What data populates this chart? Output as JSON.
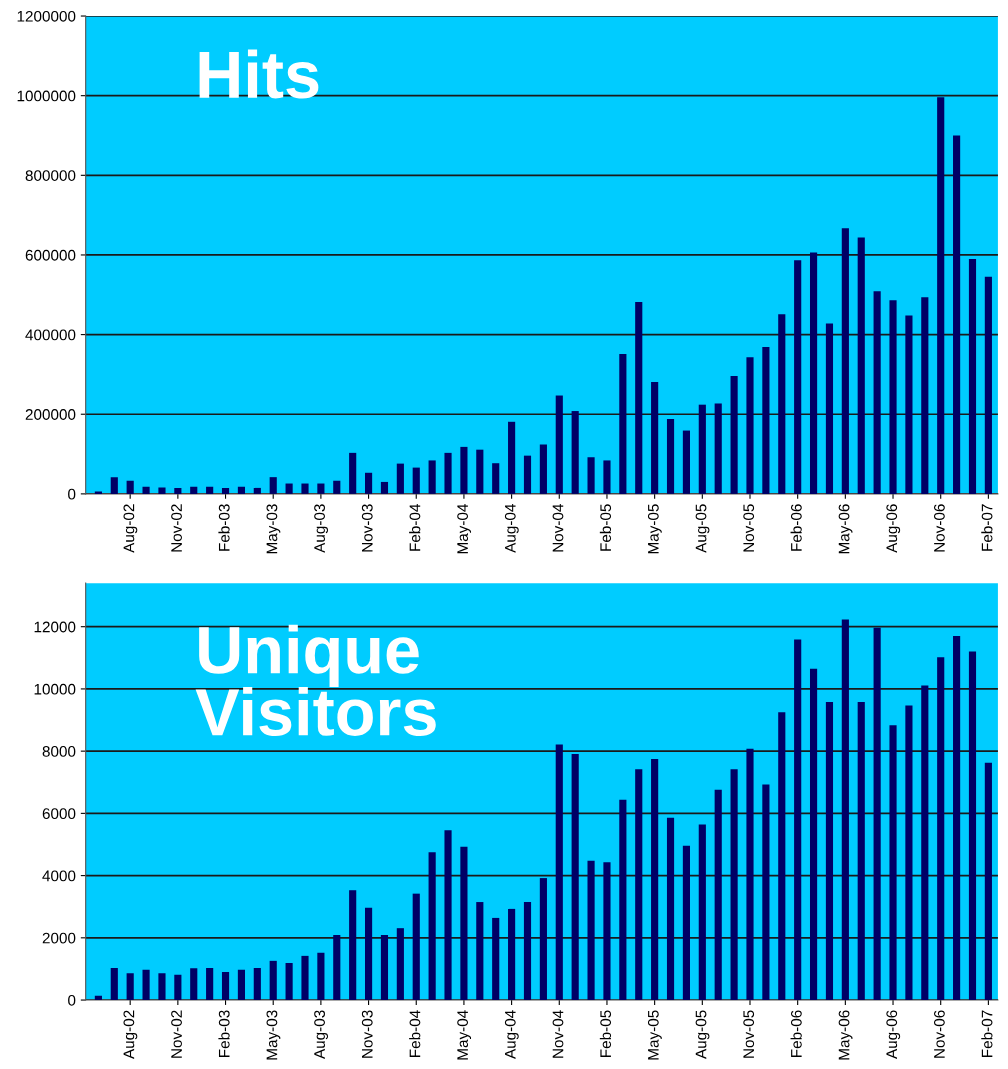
{
  "chart_data": [
    {
      "type": "bar",
      "title": "Hits",
      "color": "#000066",
      "grid": "y",
      "ylim": [
        0,
        1200000
      ],
      "yticks": [
        0,
        200000,
        400000,
        600000,
        800000,
        1000000,
        1200000
      ],
      "categories": [
        null,
        null,
        "Aug-02",
        null,
        null,
        "Nov-02",
        null,
        null,
        "Feb-03",
        null,
        null,
        "May-03",
        null,
        null,
        "Aug-03",
        null,
        null,
        "Nov-03",
        null,
        null,
        "Feb-04",
        null,
        null,
        "May-04",
        null,
        null,
        "Aug-04",
        null,
        null,
        "Nov-04",
        null,
        null,
        "Feb-05",
        null,
        null,
        "May-05",
        null,
        null,
        "Aug-05",
        null,
        null,
        "Nov-05",
        null,
        null,
        "Feb-06",
        null,
        null,
        "May-06",
        null,
        null,
        "Aug-06",
        null,
        null,
        "Nov-06",
        null,
        null,
        "Feb-07"
      ],
      "values": [
        6000,
        42000,
        33000,
        18000,
        16000,
        15000,
        18000,
        18000,
        15000,
        18000,
        15000,
        42000,
        26000,
        26000,
        26000,
        33000,
        103000,
        53000,
        30000,
        76000,
        66000,
        84000,
        103000,
        118000,
        111000,
        77000,
        181000,
        96000,
        124000,
        247000,
        208000,
        92000,
        84000,
        351000,
        482000,
        281000,
        188000,
        159000,
        224000,
        227000,
        296000,
        343000,
        369000,
        451000,
        587000,
        606000,
        428000,
        667000,
        644000,
        509000,
        486000,
        448000,
        494000,
        996000,
        900000,
        590000,
        545000
      ]
    },
    {
      "type": "bar",
      "title": "Unique\nVisitors",
      "color": "#000066",
      "grid": "y",
      "ylim": [
        0,
        13400
      ],
      "yticks": [
        0,
        2000,
        4000,
        6000,
        8000,
        10000,
        12000
      ],
      "categories": [
        null,
        null,
        "Aug-02",
        null,
        null,
        "Nov-02",
        null,
        null,
        "Feb-03",
        null,
        null,
        "May-03",
        null,
        null,
        "Aug-03",
        null,
        null,
        "Nov-03",
        null,
        null,
        "Feb-04",
        null,
        null,
        "May-04",
        null,
        null,
        "Aug-04",
        null,
        null,
        "Nov-04",
        null,
        null,
        "Feb-05",
        null,
        null,
        "May-05",
        null,
        null,
        "Aug-05",
        null,
        null,
        "Nov-05",
        null,
        null,
        "Feb-06",
        null,
        null,
        "May-06",
        null,
        null,
        "Aug-06",
        null,
        null,
        "Nov-06",
        null,
        null,
        "Feb-07"
      ],
      "values": [
        140,
        1030,
        860,
        970,
        860,
        810,
        1020,
        1030,
        900,
        970,
        1030,
        1260,
        1190,
        1420,
        1520,
        2090,
        3530,
        2970,
        2090,
        2310,
        3420,
        4750,
        5460,
        4930,
        3150,
        2640,
        2930,
        3150,
        3920,
        8210,
        7910,
        4480,
        4430,
        6440,
        7420,
        7750,
        5860,
        4960,
        5640,
        6760,
        7420,
        8080,
        6930,
        9250,
        11590,
        10650,
        9580,
        12230,
        9580,
        11970,
        8830,
        9470,
        10110,
        11020,
        11700,
        11200,
        7630
      ]
    }
  ]
}
